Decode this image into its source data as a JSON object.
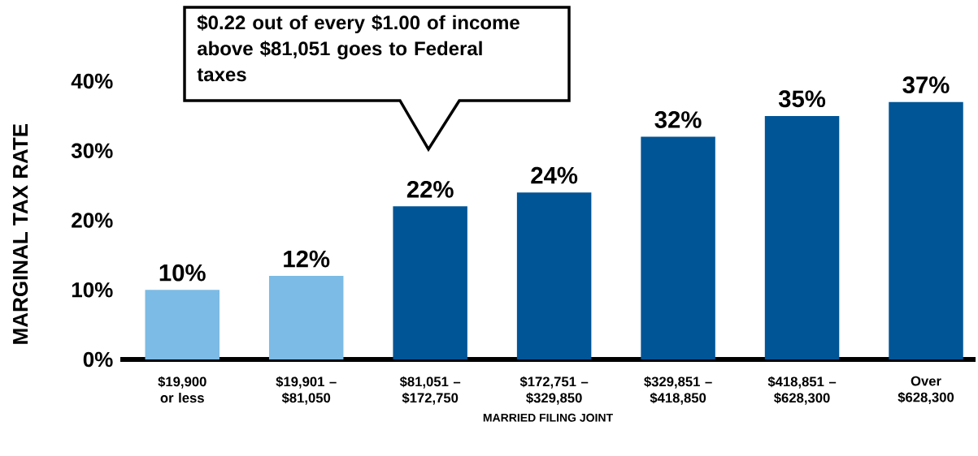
{
  "chart_data": {
    "type": "bar",
    "categories": [
      "$19,900 or less",
      "$19,901 – $81,050",
      "$81,051 – $172,750",
      "$172,751 – $329,850",
      "$329,851 – $418,850",
      "$418,851 – $628,300",
      "Over $628,300"
    ],
    "values": [
      10,
      12,
      22,
      24,
      32,
      35,
      37
    ],
    "value_labels": [
      "10%",
      "12%",
      "22%",
      "24%",
      "32%",
      "35%",
      "37%"
    ],
    "colors": [
      "#7cbbe5",
      "#7cbbe5",
      "#005596",
      "#005596",
      "#005596",
      "#005596",
      "#005596"
    ],
    "xlabel": "MARRIED FILING JOINT",
    "ylabel": "MARGINAL TAX RATE",
    "ylim": [
      0,
      40
    ],
    "yticks": [
      {
        "value": 0,
        "label": "0%"
      },
      {
        "value": 10,
        "label": "10%"
      },
      {
        "value": 20,
        "label": "20%"
      },
      {
        "value": 30,
        "label": "30%"
      },
      {
        "value": 40,
        "label": "40%"
      }
    ],
    "annotations": [
      "$0.22 out of every $1.00 of income above $81,051 goes to Federal taxes"
    ],
    "grid": false
  }
}
